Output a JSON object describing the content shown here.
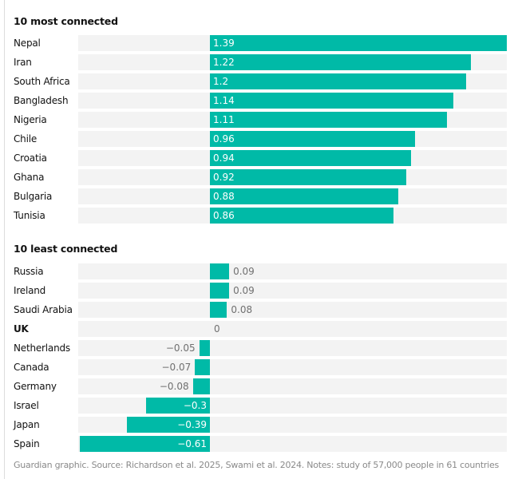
{
  "chart_data": [
    {
      "type": "bar",
      "orientation": "horizontal",
      "title": "10 most connected",
      "categories": [
        "Nepal",
        "Iran",
        "South Africa",
        "Bangladesh",
        "Nigeria",
        "Chile",
        "Croatia",
        "Ghana",
        "Bulgaria",
        "Tunisia"
      ],
      "values": [
        1.39,
        1.22,
        1.2,
        1.14,
        1.11,
        0.96,
        0.94,
        0.92,
        0.88,
        0.86
      ],
      "labels": [
        "1.39",
        "1.22",
        "1.2",
        "1.14",
        "1.11",
        "0.96",
        "0.94",
        "0.92",
        "0.88",
        "0.86"
      ],
      "xlim": [
        -0.61,
        1.39
      ]
    },
    {
      "type": "bar",
      "orientation": "horizontal",
      "title": "10 least connected",
      "categories": [
        "Russia",
        "Ireland",
        "Saudi Arabia",
        "UK",
        "Netherlands",
        "Canada",
        "Germany",
        "Israel",
        "Japan",
        "Spain"
      ],
      "values": [
        0.09,
        0.09,
        0.08,
        0,
        -0.05,
        -0.07,
        -0.08,
        -0.3,
        -0.39,
        -0.61
      ],
      "labels": [
        "0.09",
        "0.09",
        "0.08",
        "0",
        "−0.05",
        "−0.07",
        "−0.08",
        "−0.3",
        "−0.39",
        "−0.61"
      ],
      "highlight": [
        "UK"
      ],
      "xlim": [
        -0.61,
        1.39
      ]
    }
  ],
  "colors": {
    "bar": "#00baa7",
    "track": "#f3f3f3"
  },
  "footer": "Guardian graphic. Source: Richardson et al. 2025, Swami et al. 2024. Notes: study of 57,000 people in 61 countries"
}
